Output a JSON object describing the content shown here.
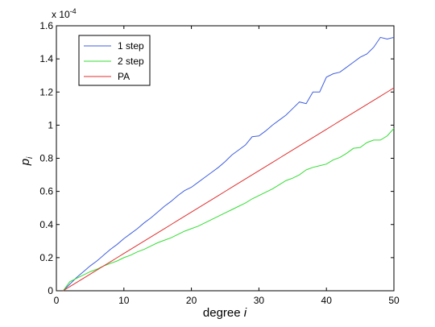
{
  "chart_data": {
    "type": "line",
    "title": "",
    "xlabel_prefix": "degree ",
    "xlabel_var": "i",
    "ylabel_main": "p",
    "ylabel_sub": "i",
    "exponent_label": "x 10",
    "exponent_power": "-4",
    "xlim": [
      0,
      50
    ],
    "ylim": [
      0,
      1.6
    ],
    "xticks": [
      "0",
      "10",
      "20",
      "30",
      "40",
      "50"
    ],
    "yticks": [
      "0",
      "0.2",
      "0.4",
      "0.6",
      "0.8",
      "1",
      "1.2",
      "1.4",
      "1.6"
    ],
    "grid": false,
    "legend_position": "top-left",
    "x": [
      1,
      2,
      3,
      4,
      5,
      6,
      7,
      8,
      9,
      10,
      11,
      12,
      13,
      14,
      15,
      16,
      17,
      18,
      19,
      20,
      21,
      22,
      23,
      24,
      25,
      26,
      27,
      28,
      29,
      30,
      31,
      32,
      33,
      34,
      35,
      36,
      37,
      38,
      39,
      40,
      41,
      42,
      43,
      44,
      45,
      46,
      47,
      48,
      49,
      50
    ],
    "series": [
      {
        "name": "1 step",
        "color": "#3f5fdf",
        "values": [
          0.0,
          0.04,
          0.08,
          0.115,
          0.15,
          0.18,
          0.215,
          0.25,
          0.28,
          0.315,
          0.345,
          0.375,
          0.41,
          0.44,
          0.475,
          0.51,
          0.54,
          0.575,
          0.605,
          0.625,
          0.655,
          0.685,
          0.715,
          0.745,
          0.78,
          0.82,
          0.85,
          0.88,
          0.93,
          0.935,
          0.965,
          1.0,
          1.03,
          1.06,
          1.1,
          1.14,
          1.13,
          1.2,
          1.2,
          1.29,
          1.31,
          1.32,
          1.35,
          1.38,
          1.41,
          1.43,
          1.47,
          1.53,
          1.52,
          1.53
        ]
      },
      {
        "name": "2 step",
        "color": "#33dd33",
        "values": [
          0.0,
          0.055,
          0.075,
          0.095,
          0.115,
          0.13,
          0.15,
          0.165,
          0.18,
          0.2,
          0.215,
          0.235,
          0.25,
          0.27,
          0.29,
          0.305,
          0.32,
          0.34,
          0.36,
          0.375,
          0.39,
          0.41,
          0.43,
          0.45,
          0.47,
          0.49,
          0.51,
          0.53,
          0.555,
          0.575,
          0.595,
          0.615,
          0.64,
          0.665,
          0.68,
          0.7,
          0.73,
          0.745,
          0.755,
          0.765,
          0.79,
          0.805,
          0.83,
          0.86,
          0.865,
          0.895,
          0.91,
          0.91,
          0.935,
          0.98
        ]
      },
      {
        "name": "PA",
        "color": "#e03030",
        "values": [
          0.0,
          0.025,
          0.05,
          0.075,
          0.1,
          0.125,
          0.15,
          0.175,
          0.2,
          0.225,
          0.25,
          0.275,
          0.3,
          0.325,
          0.35,
          0.375,
          0.4,
          0.425,
          0.45,
          0.475,
          0.5,
          0.525,
          0.55,
          0.575,
          0.6,
          0.625,
          0.65,
          0.675,
          0.7,
          0.725,
          0.75,
          0.775,
          0.8,
          0.825,
          0.85,
          0.875,
          0.9,
          0.925,
          0.95,
          0.975,
          1.0,
          1.025,
          1.05,
          1.075,
          1.1,
          1.125,
          1.15,
          1.175,
          1.2,
          1.225
        ]
      }
    ]
  }
}
